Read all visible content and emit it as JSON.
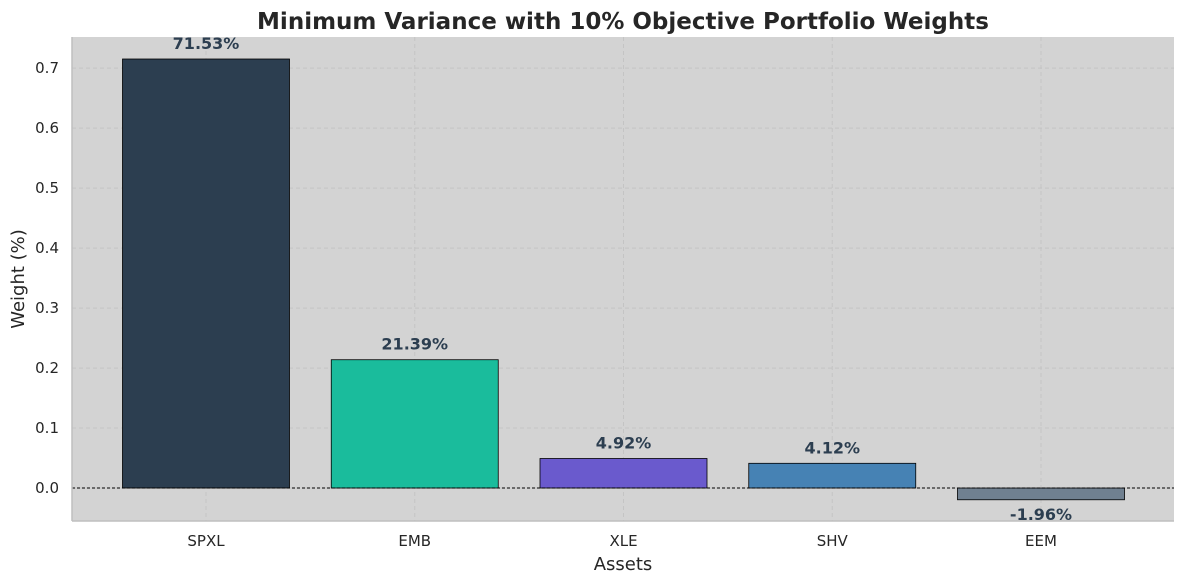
{
  "chart_data": {
    "type": "bar",
    "title": "Minimum Variance with 10% Objective Portfolio Weights",
    "xlabel": "Assets",
    "ylabel": "Weight (%)",
    "categories": [
      "SPXL",
      "EMB",
      "XLE",
      "SHV",
      "EEM"
    ],
    "values": [
      0.7153,
      0.2139,
      0.0492,
      0.0412,
      -0.0196
    ],
    "value_labels": [
      "71.53%",
      "21.39%",
      "4.92%",
      "4.12%",
      "-1.96%"
    ],
    "colors": [
      "#2c3e50",
      "#1abc9c",
      "#6a5acd",
      "#4682b4",
      "#708090"
    ],
    "ylim": [
      -0.055,
      0.752
    ],
    "yticks": [
      0.0,
      0.1,
      0.2,
      0.3,
      0.4,
      0.5,
      0.6,
      0.7
    ],
    "ytick_labels": [
      "0.0",
      "0.1",
      "0.2",
      "0.3",
      "0.4",
      "0.5",
      "0.6",
      "0.7"
    ],
    "grid": true,
    "zero_line": true,
    "plot_background": "#d3d3d3",
    "label_color": "#2c3e50"
  }
}
